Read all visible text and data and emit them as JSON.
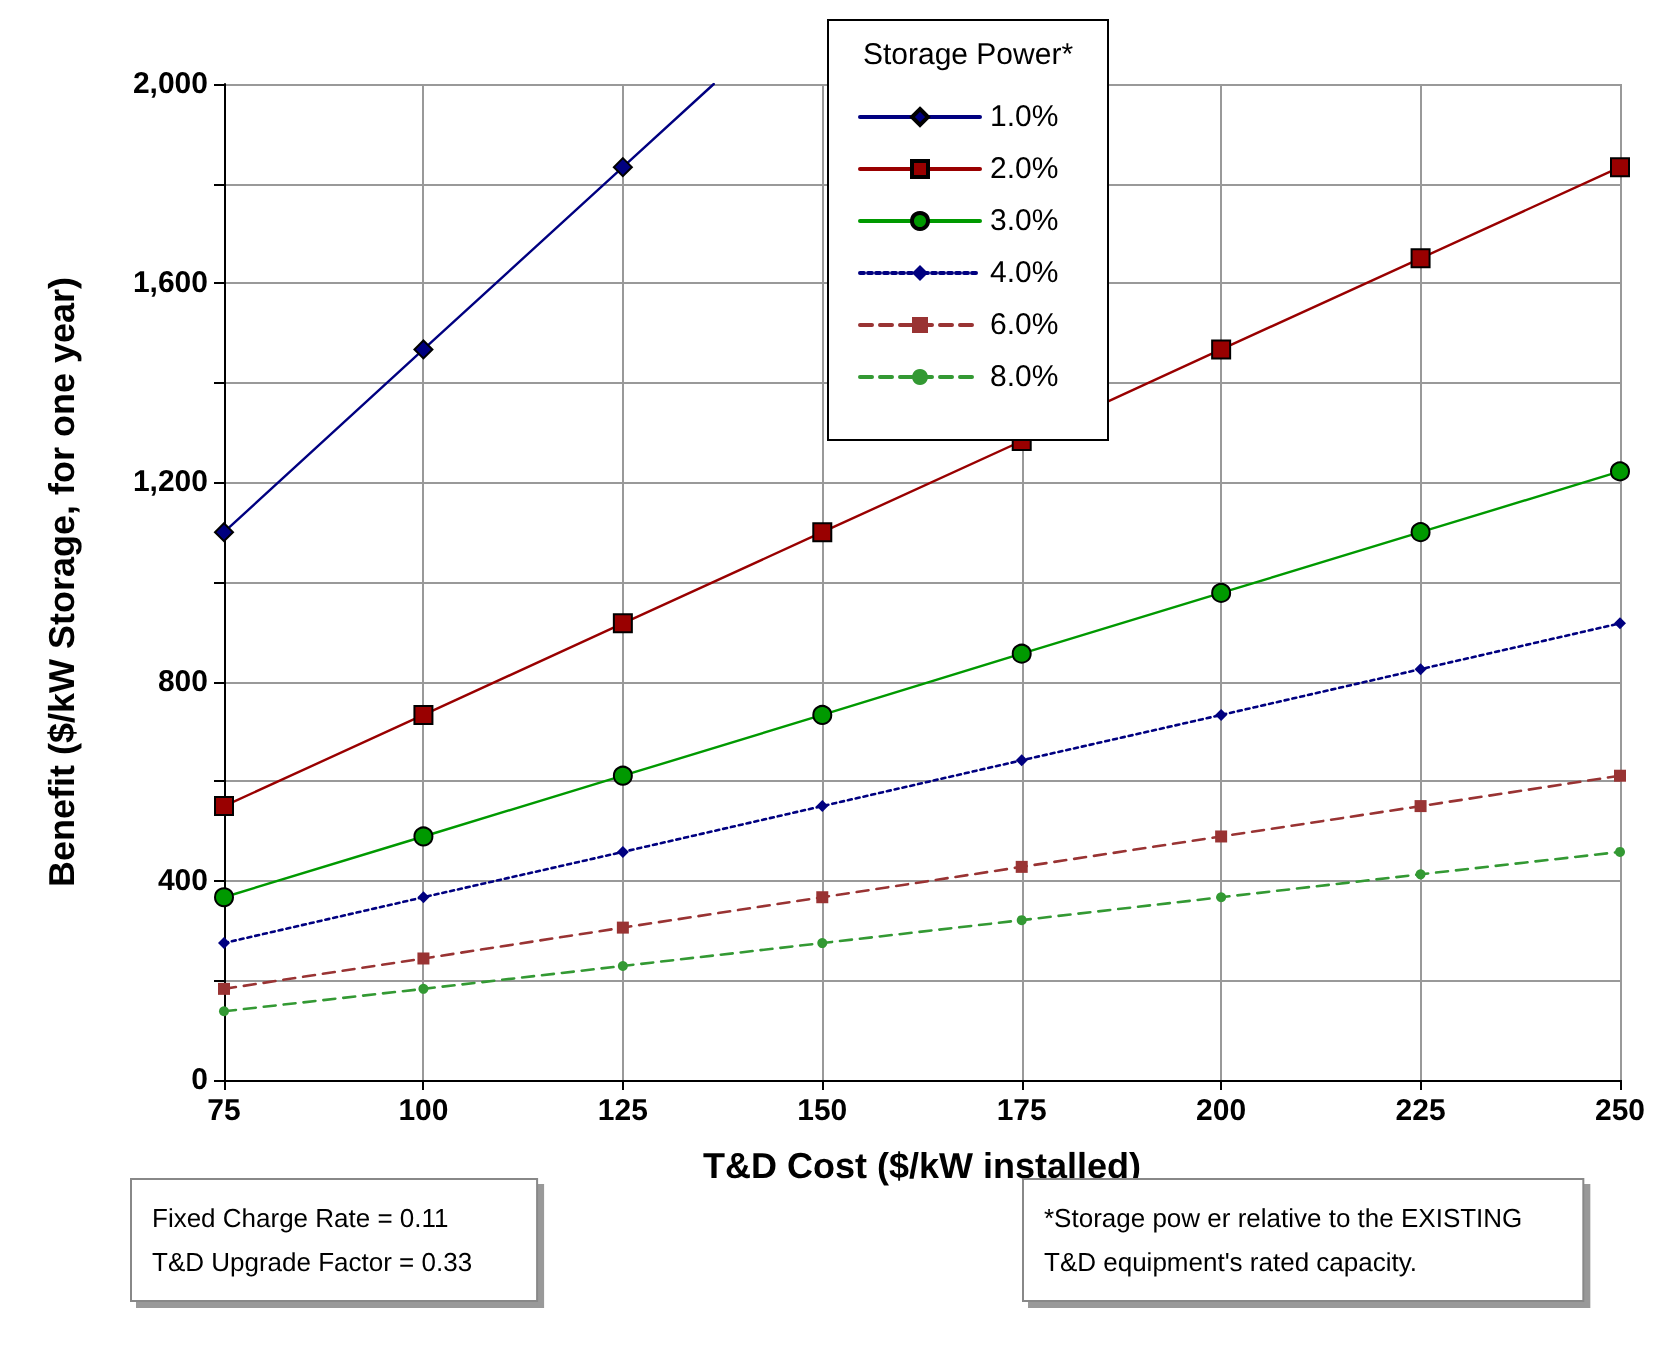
{
  "chart_data": {
    "type": "line",
    "xlabel": "T&D Cost ($/kW installed)",
    "ylabel": "Benefit ($/kW Storage, for one year)",
    "legend_title": "Storage Power*",
    "x": [
      75,
      100,
      125,
      150,
      175,
      200,
      225,
      250
    ],
    "series": [
      {
        "name": "1.0%",
        "color": "#000080",
        "marker": "diamond",
        "line_style": "solid",
        "x": [
          75,
          100,
          125,
          136.4
        ],
        "values": [
          1100,
          1467,
          1833,
          2000
        ]
      },
      {
        "name": "2.0%",
        "color": "#990000",
        "marker": "square",
        "line_style": "solid",
        "values": [
          550,
          733,
          917,
          1100,
          1283,
          1467,
          1650,
          1833
        ]
      },
      {
        "name": "3.0%",
        "color": "#009900",
        "marker": "circle",
        "line_style": "solid",
        "values": [
          367,
          489,
          611,
          733,
          856,
          978,
          1100,
          1222
        ]
      },
      {
        "name": "4.0%",
        "color": "#000080",
        "marker": "diamond",
        "line_style": "dotted",
        "values": [
          275,
          367,
          458,
          550,
          642,
          733,
          825,
          917
        ]
      },
      {
        "name": "6.0%",
        "color": "#993333",
        "marker": "square",
        "line_style": "dashed",
        "values": [
          183,
          244,
          306,
          367,
          428,
          489,
          550,
          611
        ]
      },
      {
        "name": "8.0%",
        "color": "#339933",
        "marker": "circle",
        "line_style": "dashed",
        "values": [
          138,
          183,
          229,
          275,
          321,
          367,
          413,
          458
        ]
      }
    ],
    "xlim": [
      75,
      250
    ],
    "xticks": [
      75,
      100,
      125,
      150,
      175,
      200,
      225,
      250
    ],
    "ylim": [
      0,
      2000
    ],
    "yticks": [
      0,
      {
        "value": 200,
        "label": null
      },
      400,
      {
        "value": 600,
        "label": null
      },
      800,
      {
        "value": 1000,
        "label": null
      },
      {
        "value": 1200,
        "label": "1,200"
      },
      {
        "value": 1400,
        "label": null
      },
      {
        "value": 1600,
        "label": "1,600"
      },
      {
        "value": 1800,
        "label": null
      },
      {
        "value": 2000,
        "label": "2,000"
      }
    ],
    "grid": true,
    "legend": "top right",
    "annotations": [
      "Fixed Charge Rate = 0.11\nT&D Upgrade Factor = 0.33",
      "*Storage pow er relative to the EXISTING\nT&D equipment's rated capacity."
    ]
  }
}
